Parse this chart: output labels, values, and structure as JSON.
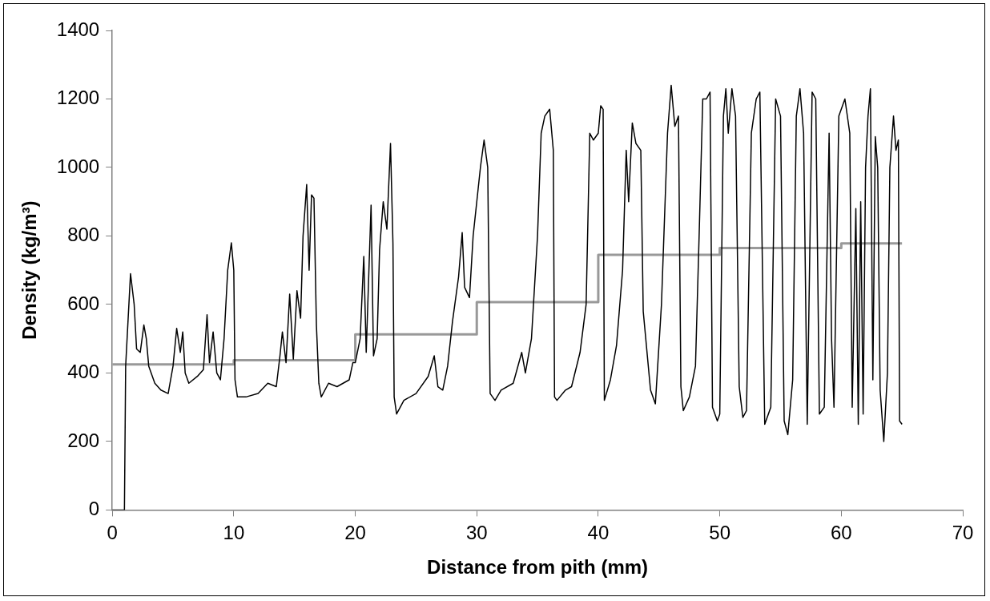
{
  "chart_data": {
    "type": "line",
    "xlabel": "Distance from pith (mm)",
    "ylabel": "Density (kg/m³)",
    "xlim": [
      0,
      70
    ],
    "xticks": [
      0,
      10,
      20,
      30,
      40,
      50,
      60,
      70
    ],
    "ylim": [
      0,
      1400
    ],
    "yticks": [
      0,
      200,
      400,
      600,
      800,
      1000,
      1200,
      1400
    ],
    "grid": false,
    "legend": false,
    "marker": "none",
    "line_style": "solid",
    "series": [
      {
        "type": "line",
        "color": "#000000",
        "x": [
          0,
          0.9,
          1.0,
          1.1,
          1.5,
          1.8,
          2.0,
          2.3,
          2.6,
          2.8,
          3.0,
          3.5,
          4.0,
          4.6,
          5.0,
          5.3,
          5.6,
          5.8,
          6.0,
          6.3,
          7.0,
          7.5,
          7.8,
          8.0,
          8.3,
          8.6,
          8.9,
          9.2,
          9.5,
          9.8,
          10.0,
          10.1,
          10.3,
          11,
          12,
          12.8,
          13.5,
          13.8,
          14.0,
          14.3,
          14.6,
          14.9,
          15.2,
          15.5,
          15.7,
          16.0,
          16.2,
          16.4,
          16.6,
          16.8,
          17.0,
          17.2,
          17.8,
          18.5,
          19.5,
          19.8,
          20.0,
          20.4,
          20.7,
          20.9,
          21.3,
          21.5,
          21.8,
          22.0,
          22.3,
          22.6,
          22.9,
          23.1,
          23.2,
          23.4,
          24,
          25,
          26,
          26.5,
          26.8,
          27.2,
          27.6,
          28,
          28.5,
          28.8,
          29.0,
          29.4,
          29.7,
          30.0,
          30.3,
          30.6,
          30.9,
          31.1,
          31.5,
          32,
          33,
          33.7,
          34,
          34.5,
          35.0,
          35.3,
          35.6,
          36.0,
          36.3,
          36.4,
          36.6,
          37.3,
          37.8,
          38.5,
          39,
          39.3,
          39.6,
          40.0,
          40.2,
          40.4,
          40.5,
          41,
          41.5,
          42,
          42.3,
          42.5,
          42.8,
          43.1,
          43.5,
          43.7,
          44.3,
          44.7,
          45.2,
          45.5,
          45.7,
          46.0,
          46.3,
          46.6,
          46.8,
          47.0,
          47.5,
          48.0,
          48.3,
          48.6,
          48.9,
          49.2,
          49.4,
          49.8,
          50.0,
          50.3,
          50.5,
          50.7,
          51.0,
          51.3,
          51.6,
          51.9,
          52.2,
          52.6,
          53.0,
          53.3,
          53.7,
          54.2,
          54.6,
          55.0,
          55.3,
          55.6,
          56.0,
          56.3,
          56.6,
          56.9,
          57.2,
          57.6,
          57.9,
          58.2,
          58.6,
          59.0,
          59.2,
          59.4,
          59.8,
          60.3,
          60.7,
          60.9,
          61.2,
          61.4,
          61.6,
          61.8,
          62.0,
          62.2,
          62.4,
          62.6,
          62.8,
          63.0,
          63.2,
          63.5,
          63.8,
          64.0,
          64.3,
          64.5,
          64.7,
          64.8,
          65.0
        ],
        "values": [
          0,
          0,
          0,
          420,
          690,
          600,
          470,
          460,
          540,
          500,
          420,
          370,
          350,
          340,
          420,
          530,
          460,
          520,
          400,
          370,
          390,
          410,
          570,
          430,
          520,
          400,
          380,
          500,
          700,
          780,
          700,
          380,
          330,
          330,
          340,
          370,
          360,
          450,
          520,
          430,
          630,
          440,
          640,
          560,
          800,
          950,
          700,
          920,
          910,
          540,
          370,
          330,
          370,
          360,
          380,
          430,
          430,
          500,
          740,
          460,
          890,
          450,
          500,
          760,
          900,
          820,
          1070,
          780,
          330,
          280,
          320,
          340,
          390,
          450,
          360,
          350,
          420,
          550,
          680,
          810,
          650,
          620,
          800,
          900,
          1000,
          1080,
          1000,
          340,
          320,
          350,
          370,
          460,
          400,
          500,
          800,
          1100,
          1150,
          1170,
          1050,
          330,
          320,
          350,
          360,
          460,
          600,
          1100,
          1080,
          1100,
          1180,
          1170,
          320,
          380,
          480,
          700,
          1050,
          900,
          1130,
          1070,
          1050,
          580,
          350,
          310,
          600,
          900,
          1100,
          1240,
          1120,
          1150,
          360,
          290,
          330,
          420,
          800,
          1200,
          1200,
          1220,
          300,
          260,
          280,
          1150,
          1230,
          1100,
          1230,
          1150,
          360,
          270,
          290,
          1100,
          1200,
          1220,
          250,
          300,
          1200,
          1150,
          260,
          220,
          380,
          1150,
          1230,
          1100,
          250,
          1220,
          1200,
          280,
          300,
          1100,
          500,
          300,
          1150,
          1200,
          1100,
          300,
          880,
          250,
          900,
          280,
          1000,
          1150,
          1230,
          380,
          1090,
          1000,
          350,
          200,
          400,
          1000,
          1150,
          1050,
          1080,
          260,
          250
        ]
      },
      {
        "type": "step",
        "color": "#999999",
        "x": [
          0,
          10,
          20,
          30,
          40,
          50,
          60,
          65
        ],
        "values": [
          425,
          437,
          513,
          607,
          745,
          765,
          778,
          778
        ]
      }
    ]
  }
}
